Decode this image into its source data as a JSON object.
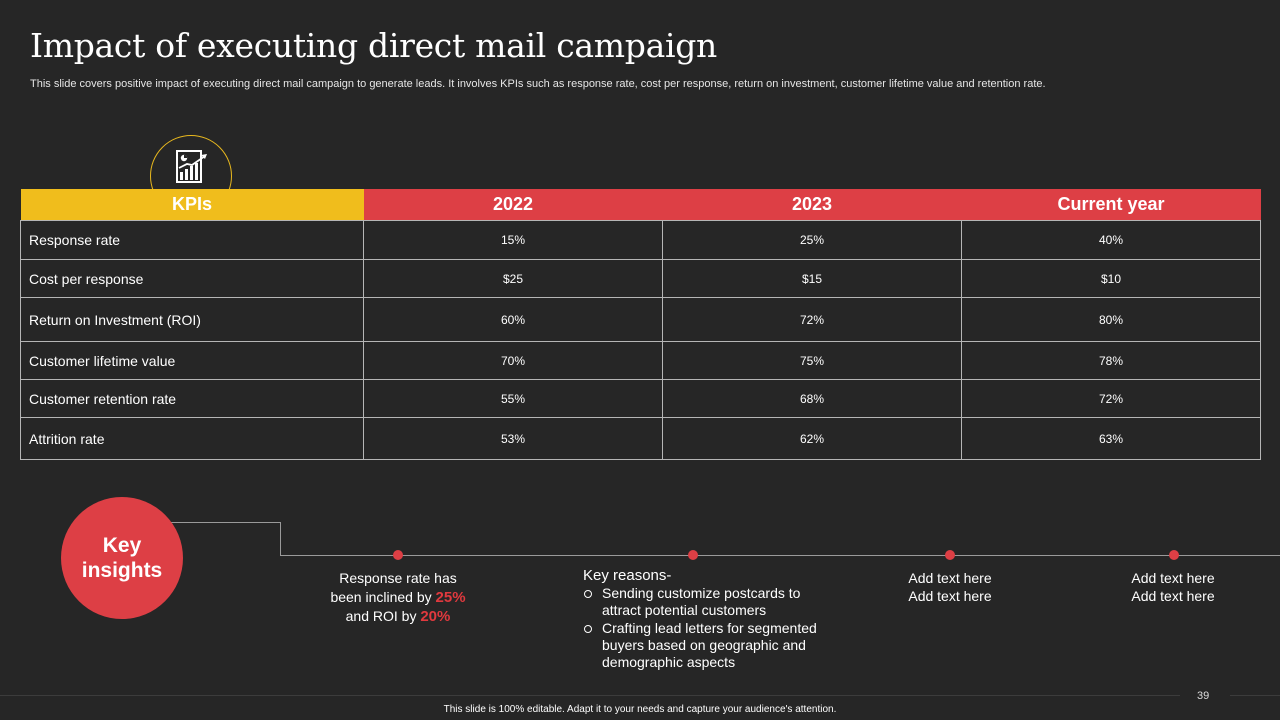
{
  "title": "Impact of executing direct mail campaign",
  "subtitle": "This slide covers positive impact of executing direct mail campaign to generate leads. It involves KPIs such as response rate, cost per response, return on investment, customer lifetime value and retention rate.",
  "table": {
    "headers": [
      "KPIs",
      "2022",
      "2023",
      "Current year"
    ],
    "rows": [
      {
        "kpi": "Response rate",
        "y2022": "15%",
        "y2023": "25%",
        "current": "40%"
      },
      {
        "kpi": "Cost per response",
        "y2022": "$25",
        "y2023": "$15",
        "current": "$10"
      },
      {
        "kpi": "Return on Investment (ROI)",
        "y2022": "60%",
        "y2023": "72%",
        "current": "80%"
      },
      {
        "kpi": "Customer  lifetime value",
        "y2022": "70%",
        "y2023": "75%",
        "current": "78%"
      },
      {
        "kpi": "Customer retention rate",
        "y2022": "55%",
        "y2023": "68%",
        "current": "72%"
      },
      {
        "kpi": "Attrition rate",
        "y2022": "53%",
        "y2023": "62%",
        "current": "63%"
      }
    ]
  },
  "insights": {
    "label_line1": "Key",
    "label_line2": "insights",
    "first": {
      "line1": "Response rate has",
      "line2": "been inclined by",
      "value1": "25%",
      "line3": "and ROI by",
      "value2": "20%"
    },
    "reasons": {
      "heading": "Key reasons-",
      "items": [
        "Sending customize postcards to attract potential customers",
        "Crafting lead letters for segmented buyers based on geographic and demographic aspects"
      ]
    },
    "third": {
      "line1": "Add text here",
      "line2": "Add text here"
    },
    "fourth": {
      "line1": "Add text here",
      "line2": "Add text here"
    }
  },
  "page_number": "39",
  "footer": "This slide is 100% editable.  Adapt it to your needs and capture your audience's attention."
}
